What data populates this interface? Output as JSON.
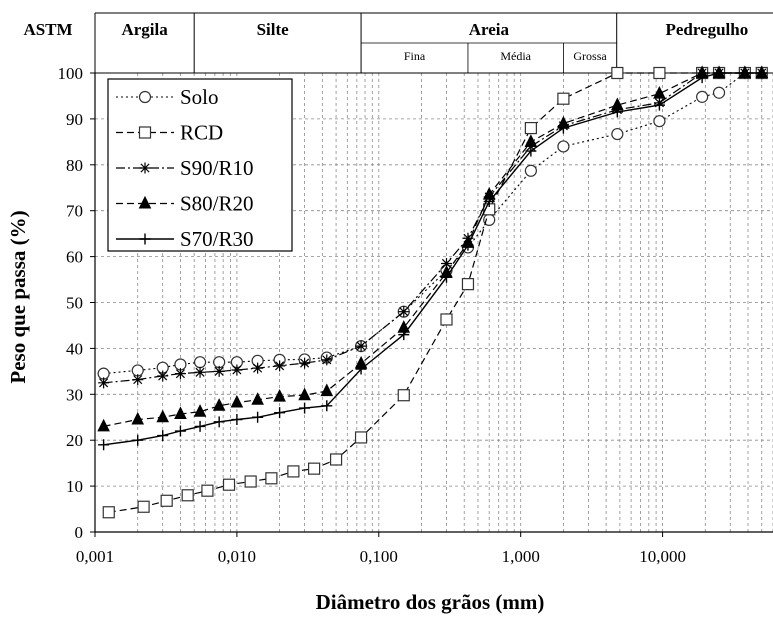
{
  "chart_data": {
    "type": "line",
    "xlabel": "Diâmetro dos grãos (mm)",
    "ylabel": "Peso que passa (%)",
    "xscale": "log",
    "xlim": [
      0.001,
      60
    ],
    "ylim": [
      0,
      100
    ],
    "grid": true,
    "legend_position": "top-left",
    "x_tick_labels": [
      "0,001",
      "0,010",
      "0,100",
      "1,000",
      "10,000"
    ],
    "x_ticks": [
      0.001,
      0.01,
      0.1,
      1,
      10
    ],
    "y_ticks": [
      0,
      10,
      20,
      30,
      40,
      50,
      60,
      70,
      80,
      90,
      100
    ],
    "header": {
      "standard": "ASTM",
      "classes": [
        "Argila",
        "Silte",
        "Areia",
        "Pedregulho"
      ],
      "sand_subclasses": [
        "Fina",
        "Média",
        "Grossa"
      ]
    },
    "series": [
      {
        "name": "Solo",
        "marker": "open-circle",
        "line": "dotted",
        "x": [
          0.00115,
          0.002,
          0.003,
          0.004,
          0.0055,
          0.0075,
          0.01,
          0.014,
          0.02,
          0.03,
          0.043,
          0.075,
          0.15,
          0.3,
          0.425,
          0.6,
          1.18,
          2.0,
          4.8,
          9.5,
          19,
          25,
          38,
          50
        ],
        "y": [
          34.5,
          35.2,
          35.8,
          36.5,
          37,
          37,
          37,
          37.3,
          37.5,
          37.6,
          38,
          40.5,
          48,
          57,
          62,
          68,
          78.7,
          84,
          86.7,
          89.5,
          94.8,
          95.7,
          100,
          100
        ]
      },
      {
        "name": "RCD",
        "marker": "open-square",
        "line": "dashed",
        "x": [
          0.00125,
          0.0022,
          0.0032,
          0.0045,
          0.0062,
          0.0088,
          0.0125,
          0.0175,
          0.025,
          0.035,
          0.05,
          0.075,
          0.15,
          0.3,
          0.425,
          0.6,
          1.18,
          2.0,
          4.8,
          9.5,
          19,
          25,
          38,
          50
        ],
        "y": [
          4.3,
          5.5,
          6.8,
          8,
          9,
          10.3,
          11,
          11.7,
          13.2,
          13.8,
          15.8,
          20.6,
          29.8,
          46.3,
          54,
          70.3,
          88,
          94.4,
          100,
          100,
          100,
          100,
          100,
          100
        ]
      },
      {
        "name": "S90/R10",
        "marker": "star",
        "line": "dash-dot",
        "x": [
          0.00115,
          0.002,
          0.003,
          0.004,
          0.0055,
          0.0075,
          0.01,
          0.014,
          0.02,
          0.03,
          0.043,
          0.075,
          0.15,
          0.3,
          0.425,
          0.6,
          1.18,
          2.0,
          4.8,
          9.5,
          19,
          25,
          38,
          50
        ],
        "y": [
          32.5,
          33.2,
          34,
          34.5,
          34.8,
          35,
          35.3,
          35.7,
          36.2,
          36.8,
          37.5,
          40.5,
          48,
          58.5,
          64,
          73,
          84,
          88.5,
          92,
          93.5,
          100,
          100,
          100,
          100
        ]
      },
      {
        "name": "S80/R20",
        "marker": "filled-triangle",
        "line": "dashed",
        "x": [
          0.00115,
          0.002,
          0.003,
          0.004,
          0.0055,
          0.0075,
          0.01,
          0.014,
          0.02,
          0.03,
          0.043,
          0.075,
          0.15,
          0.3,
          0.425,
          0.6,
          1.18,
          2.0,
          4.8,
          9.5,
          19,
          25,
          38,
          50
        ],
        "y": [
          23,
          24.5,
          25,
          25.7,
          26.2,
          27.5,
          28.2,
          28.8,
          29.5,
          29.8,
          30.7,
          36.7,
          44.5,
          56.5,
          63,
          73.5,
          85,
          89,
          93,
          95.5,
          100,
          100,
          100,
          100
        ]
      },
      {
        "name": "S70/R30",
        "marker": "plus",
        "line": "solid",
        "x": [
          0.00115,
          0.002,
          0.003,
          0.004,
          0.0055,
          0.0075,
          0.01,
          0.014,
          0.02,
          0.03,
          0.043,
          0.075,
          0.15,
          0.3,
          0.425,
          0.6,
          1.18,
          2.0,
          4.8,
          9.5,
          19,
          25,
          38,
          50
        ],
        "y": [
          19,
          20,
          21,
          22,
          23,
          24,
          24.5,
          25,
          26,
          27,
          27.5,
          35.5,
          43,
          55.5,
          62.5,
          72,
          83,
          88,
          91.5,
          93,
          99,
          100,
          100,
          100
        ]
      }
    ]
  }
}
